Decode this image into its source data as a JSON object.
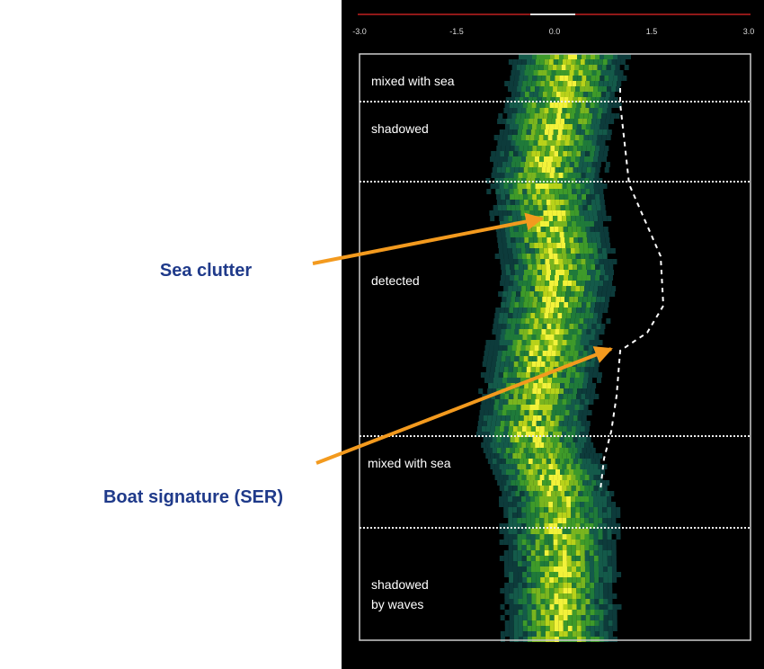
{
  "axis": {
    "tick_labels": [
      "-3.0",
      "-1.5",
      "0.0",
      "1.5",
      "3.0"
    ]
  },
  "regions": [
    {
      "label": "mixed with sea"
    },
    {
      "label": "shadowed"
    },
    {
      "label": "detected"
    },
    {
      "label": "mixed with sea"
    },
    {
      "label": "shadowed\nby waves"
    }
  ],
  "annotations": [
    {
      "label": "Sea clutter"
    },
    {
      "label": "Boat signature (SER)"
    }
  ]
}
